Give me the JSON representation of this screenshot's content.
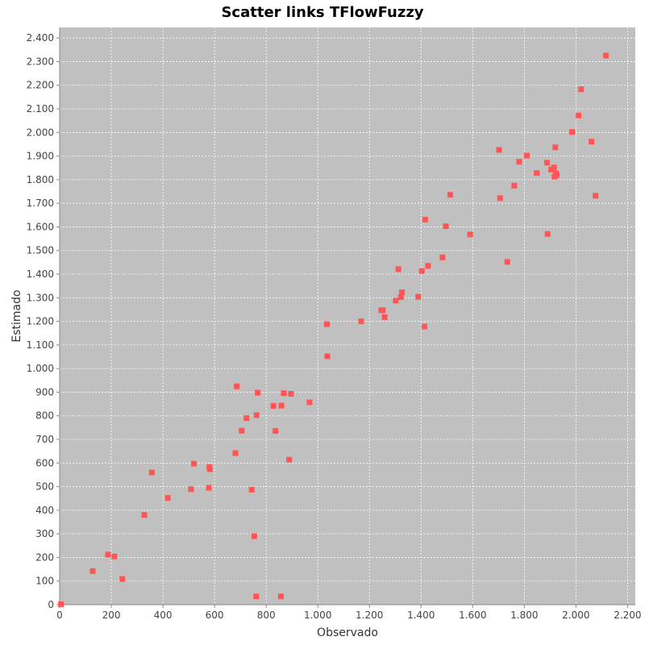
{
  "chart_data": {
    "type": "scatter",
    "title": "Scatter links TFlowFuzzy",
    "xlabel": "Observado",
    "ylabel": "Estimado",
    "xlim": [
      0,
      2230
    ],
    "ylim": [
      0,
      2445
    ],
    "x_ticks": [
      {
        "value": 0,
        "label": "0"
      },
      {
        "value": 200,
        "label": "200"
      },
      {
        "value": 400,
        "label": "400"
      },
      {
        "value": 600,
        "label": "600"
      },
      {
        "value": 800,
        "label": "800"
      },
      {
        "value": 1000,
        "label": "1.000"
      },
      {
        "value": 1200,
        "label": "1.200"
      },
      {
        "value": 1400,
        "label": "1.400"
      },
      {
        "value": 1600,
        "label": "1.600"
      },
      {
        "value": 1800,
        "label": "1.800"
      },
      {
        "value": 2000,
        "label": "2.000"
      },
      {
        "value": 2200,
        "label": "2.200"
      }
    ],
    "y_ticks": [
      {
        "value": 0,
        "label": "0"
      },
      {
        "value": 100,
        "label": "100"
      },
      {
        "value": 200,
        "label": "200"
      },
      {
        "value": 300,
        "label": "300"
      },
      {
        "value": 400,
        "label": "400"
      },
      {
        "value": 500,
        "label": "500"
      },
      {
        "value": 600,
        "label": "600"
      },
      {
        "value": 700,
        "label": "700"
      },
      {
        "value": 800,
        "label": "800"
      },
      {
        "value": 900,
        "label": "900"
      },
      {
        "value": 1000,
        "label": "1.000"
      },
      {
        "value": 1100,
        "label": "1.100"
      },
      {
        "value": 1200,
        "label": "1.200"
      },
      {
        "value": 1300,
        "label": "1.300"
      },
      {
        "value": 1400,
        "label": "1.400"
      },
      {
        "value": 1500,
        "label": "1.500"
      },
      {
        "value": 1600,
        "label": "1.600"
      },
      {
        "value": 1700,
        "label": "1.700"
      },
      {
        "value": 1800,
        "label": "1.800"
      },
      {
        "value": 1900,
        "label": "1.900"
      },
      {
        "value": 2000,
        "label": "2.000"
      },
      {
        "value": 2100,
        "label": "2.100"
      },
      {
        "value": 2200,
        "label": "2.200"
      },
      {
        "value": 2300,
        "label": "2.300"
      },
      {
        "value": 2400,
        "label": "2.400"
      }
    ],
    "grid": true,
    "legend": "none",
    "colors": {
      "plot_background": "#c0c0c0",
      "point": "#ff5555",
      "grid": "#ffffff"
    },
    "series": [
      {
        "x": [
          5,
          128,
          187,
          212,
          243,
          328,
          357,
          419,
          509,
          520,
          578,
          580,
          582,
          681,
          686,
          705,
          724,
          744,
          754,
          761,
          763,
          767,
          828,
          836,
          857,
          859,
          868,
          889,
          896,
          968,
          1035,
          1037,
          1168,
          1246,
          1252,
          1259,
          1302,
          1312,
          1322,
          1326,
          1389,
          1403,
          1413,
          1416,
          1427,
          1483,
          1496,
          1513,
          1590,
          1702,
          1706,
          1734,
          1761,
          1780,
          1810,
          1848,
          1888,
          1890,
          1904,
          1915,
          1917,
          1920,
          1923,
          1925,
          1985,
          2010,
          2020,
          2060,
          2076,
          2116
        ],
        "y": [
          2,
          142,
          212,
          204,
          109,
          380,
          560,
          452,
          489,
          597,
          495,
          583,
          574,
          642,
          925,
          737,
          790,
          487,
          290,
          35,
          803,
          898,
          842,
          736,
          35,
          843,
          896,
          614,
          893,
          857,
          1188,
          1052,
          1200,
          1247,
          1247,
          1218,
          1288,
          1421,
          1303,
          1323,
          1304,
          1413,
          1178,
          1631,
          1435,
          1471,
          1603,
          1736,
          1568,
          1926,
          1722,
          1452,
          1775,
          1876,
          1902,
          1828,
          1872,
          1570,
          1843,
          1852,
          1813,
          1937,
          1826,
          1819,
          2002,
          2072,
          2183,
          1961,
          1732,
          2326
        ]
      }
    ]
  }
}
